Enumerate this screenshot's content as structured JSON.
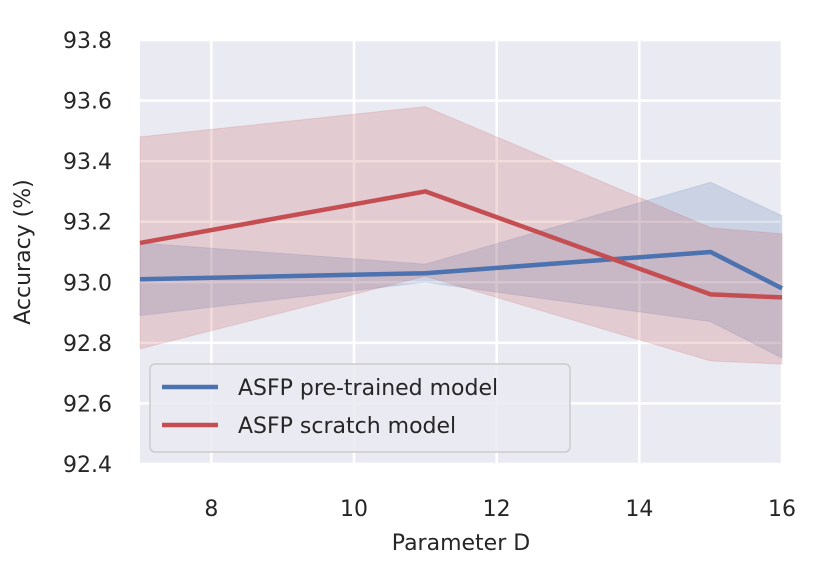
{
  "chart_data": {
    "type": "line",
    "title": "",
    "xlabel": "Parameter D",
    "ylabel": "Accuracy (%)",
    "xlim": [
      7,
      16
    ],
    "ylim": [
      92.4,
      93.8
    ],
    "xticks": [
      8,
      10,
      12,
      14,
      16
    ],
    "xtick_labels": [
      "8",
      "10",
      "12",
      "14",
      "16"
    ],
    "yticks": [
      92.4,
      92.6,
      92.8,
      93.0,
      93.2,
      93.4,
      93.6,
      93.8
    ],
    "ytick_labels": [
      "92.4",
      "92.6",
      "92.8",
      "93.0",
      "93.2",
      "93.4",
      "93.6",
      "93.8"
    ],
    "grid": true,
    "legend_position": "lower-left",
    "series": [
      {
        "name": "ASFP pre-trained model",
        "color": "#4c72b0",
        "x": [
          7,
          11,
          15,
          16
        ],
        "y": [
          93.01,
          93.03,
          93.1,
          92.98
        ],
        "upper": [
          93.13,
          93.06,
          93.33,
          93.22
        ],
        "lower": [
          92.89,
          93.0,
          92.87,
          92.75
        ]
      },
      {
        "name": "ASFP scratch model",
        "color": "#c44e52",
        "x": [
          7,
          11,
          15,
          16
        ],
        "y": [
          93.13,
          93.3,
          92.96,
          92.95
        ],
        "upper": [
          93.48,
          93.58,
          93.18,
          93.16
        ],
        "lower": [
          92.78,
          93.02,
          92.74,
          92.73
        ]
      }
    ]
  }
}
